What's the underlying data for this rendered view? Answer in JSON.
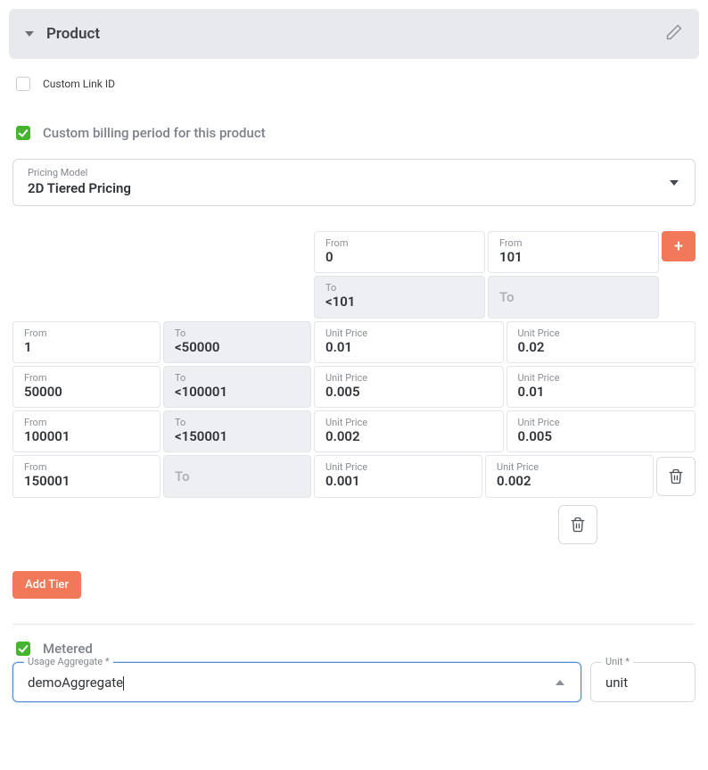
{
  "header": {
    "title": "Product"
  },
  "custom_link": {
    "label": "Custom Link ID",
    "checked": false
  },
  "billing_period": {
    "label": "Custom billing period for this product",
    "checked": true
  },
  "pricing_model": {
    "label": "Pricing Model",
    "value": "2D Tiered Pricing"
  },
  "col_headers": {
    "from_label": "From",
    "to_label": "To",
    "unit_price_label": "Unit Price",
    "cols": [
      {
        "from": "0",
        "to": "<101"
      },
      {
        "from": "101",
        "to": ""
      }
    ]
  },
  "to_placeholder": "To",
  "rows": [
    {
      "from": "1",
      "to": "<50000",
      "p1": "0.01",
      "p2": "0.02"
    },
    {
      "from": "50000",
      "to": "<100001",
      "p1": "0.005",
      "p2": "0.01"
    },
    {
      "from": "100001",
      "to": "<150001",
      "p1": "0.002",
      "p2": "0.005"
    },
    {
      "from": "150001",
      "to": "",
      "p1": "0.001",
      "p2": "0.002"
    }
  ],
  "buttons": {
    "plus": "+",
    "add_tier": "Add Tier"
  },
  "metered": {
    "label": "Metered",
    "checked": true,
    "usage_aggregate_label": "Usage Aggregate *",
    "usage_aggregate_value": "demoAggregate",
    "unit_label": "Unit *",
    "unit_value": "unit"
  },
  "colors": {
    "accent": "#f1795a",
    "green": "#45b52e"
  }
}
